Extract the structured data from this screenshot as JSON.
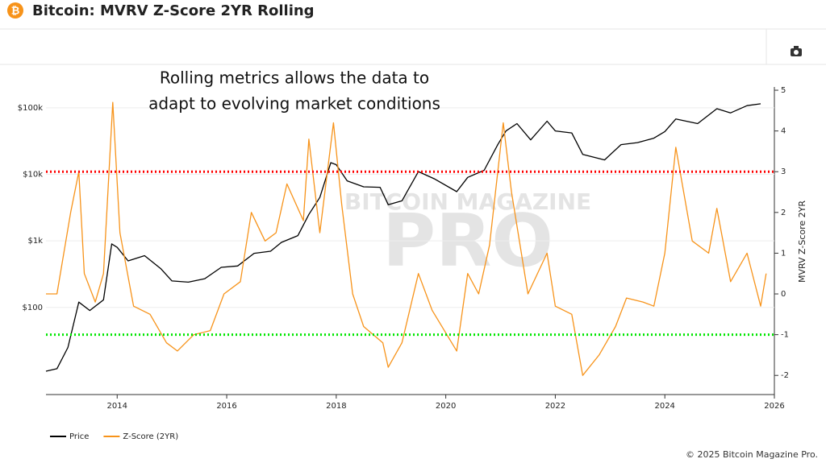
{
  "header": {
    "title": "Bitcoin: MVRV Z-Score 2YR Rolling"
  },
  "chart_data": {
    "type": "line",
    "annotation": [
      "Rolling metrics allows the data to",
      "adapt to evolving market conditions"
    ],
    "watermark": [
      "BITCOIN MAGAZINE",
      "PRO"
    ],
    "y2label": "MVRV Z-Score 2YR",
    "xlim": [
      2012.7,
      2026
    ],
    "xticks": [
      2014,
      2016,
      2018,
      2020,
      2022,
      2024,
      2026
    ],
    "ylim": [
      4.9,
      206000
    ],
    "log_y": true,
    "yticks": [
      {
        "value": 100,
        "label": "$100"
      },
      {
        "value": 1000,
        "label": "$1k"
      },
      {
        "value": 10000,
        "label": "$10k"
      },
      {
        "value": 100000,
        "label": "$100k"
      }
    ],
    "y2lim": [
      -2.47,
      5.08
    ],
    "y2ticks": [
      -2,
      -1,
      0,
      1,
      2,
      3,
      4,
      5
    ],
    "grid": true,
    "reference_lines": [
      {
        "value": 3,
        "color": "#ff0000",
        "axis": "y2"
      },
      {
        "value": -1,
        "color": "#00e600",
        "axis": "y2"
      }
    ],
    "series": [
      {
        "name": "Price",
        "color": "#000000",
        "x": [
          2012.7,
          2012.9,
          2013.1,
          2013.3,
          2013.5,
          2013.75,
          2013.9,
          2014.0,
          2014.2,
          2014.5,
          2014.8,
          2015.0,
          2015.3,
          2015.6,
          2015.9,
          2016.2,
          2016.5,
          2016.8,
          2017.0,
          2017.3,
          2017.5,
          2017.7,
          2017.9,
          2018.0,
          2018.2,
          2018.5,
          2018.8,
          2018.95,
          2019.2,
          2019.5,
          2019.8,
          2020.2,
          2020.4,
          2020.7,
          2020.95,
          2021.1,
          2021.3,
          2021.55,
          2021.85,
          2022.0,
          2022.3,
          2022.5,
          2022.9,
          2023.2,
          2023.5,
          2023.8,
          2024.0,
          2024.2,
          2024.6,
          2024.95,
          2025.2,
          2025.5,
          2025.75
        ],
        "values": [
          11,
          12,
          25,
          120,
          90,
          130,
          900,
          800,
          500,
          600,
          380,
          250,
          240,
          270,
          400,
          420,
          650,
          700,
          950,
          1200,
          2500,
          4500,
          15000,
          14000,
          8000,
          6500,
          6400,
          3500,
          4000,
          11000,
          8500,
          5500,
          9000,
          11500,
          28000,
          45000,
          58000,
          33000,
          63000,
          45000,
          42000,
          20000,
          16500,
          28000,
          30000,
          35000,
          44000,
          68000,
          58000,
          97000,
          84000,
          108000,
          115000
        ]
      },
      {
        "name": "Z-Score (2YR)",
        "color": "#f7931a",
        "axis": "y2",
        "x": [
          2012.7,
          2012.9,
          2013.15,
          2013.3,
          2013.4,
          2013.6,
          2013.75,
          2013.92,
          2014.05,
          2014.3,
          2014.6,
          2014.9,
          2015.1,
          2015.4,
          2015.7,
          2015.95,
          2016.25,
          2016.45,
          2016.7,
          2016.9,
          2017.1,
          2017.4,
          2017.5,
          2017.7,
          2017.95,
          2018.1,
          2018.3,
          2018.5,
          2018.85,
          2018.95,
          2019.2,
          2019.5,
          2019.75,
          2020.2,
          2020.4,
          2020.6,
          2020.8,
          2021.05,
          2021.2,
          2021.5,
          2021.85,
          2022.0,
          2022.3,
          2022.5,
          2022.8,
          2023.1,
          2023.3,
          2023.6,
          2023.8,
          2024.0,
          2024.2,
          2024.5,
          2024.8,
          2024.95,
          2025.2,
          2025.5,
          2025.75,
          2025.85
        ],
        "values": [
          0,
          0,
          2.0,
          3.0,
          0.5,
          -0.2,
          0.5,
          4.7,
          1.5,
          -0.3,
          -0.5,
          -1.2,
          -1.4,
          -1.0,
          -0.9,
          0.0,
          0.3,
          2.0,
          1.3,
          1.5,
          2.7,
          1.8,
          3.8,
          1.5,
          4.2,
          2.2,
          0.0,
          -0.8,
          -1.2,
          -1.8,
          -1.2,
          0.5,
          -0.4,
          -1.4,
          0.5,
          0.0,
          1.2,
          4.2,
          2.5,
          0.0,
          1.0,
          -0.3,
          -0.5,
          -2.0,
          -1.5,
          -0.8,
          -0.1,
          -0.2,
          -0.3,
          1.0,
          3.6,
          1.3,
          1.0,
          2.1,
          0.3,
          1.0,
          -0.3,
          0.5
        ]
      }
    ]
  },
  "footer": {
    "copyright": "© 2025 Bitcoin Magazine Pro."
  }
}
